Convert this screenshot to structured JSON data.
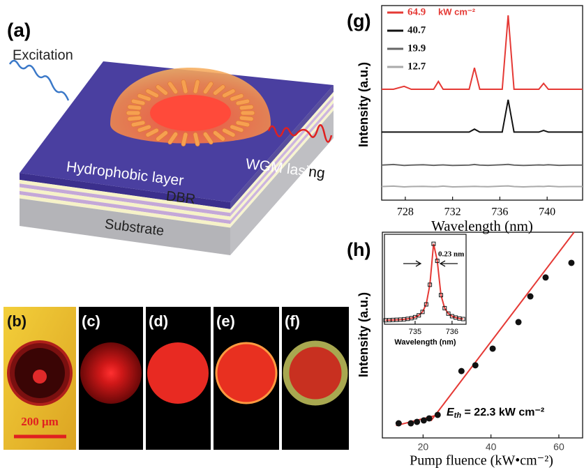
{
  "panel_a": {
    "label": "(a)",
    "excitation": "Excitation",
    "hydrophobic": "Hydrophobic layer",
    "lasing": "WGM lasing",
    "dbr": "DBR",
    "substrate": "Substrate"
  },
  "images": {
    "labels": [
      "(b)",
      "(c)",
      "(d)",
      "(e)",
      "(f)"
    ],
    "scale_bar": "200 μm"
  },
  "chart_data": [
    {
      "type": "line",
      "label": "(g)",
      "xlabel": "Wavelength (nm)",
      "ylabel": "Intensity (a.u.)",
      "xlim": [
        726,
        743
      ],
      "xticks": [
        728,
        732,
        736,
        740
      ],
      "ylim": [
        0,
        100
      ],
      "legend_unit": "kW cm⁻²",
      "x": [
        726,
        727,
        727.9,
        728.5,
        729.5,
        730.4,
        730.8,
        731.2,
        732,
        733.4,
        733.85,
        734.3,
        735,
        736.2,
        736.7,
        737.2,
        738,
        739.3,
        739.7,
        740.1,
        741,
        742,
        743
      ],
      "series": [
        {
          "name": "64.9",
          "color": "#e53935",
          "values": [
            57,
            57,
            58.5,
            57,
            57,
            57,
            61,
            57,
            57,
            57,
            68,
            57,
            57,
            57,
            95,
            57,
            57,
            57,
            60,
            57,
            57,
            57,
            57
          ]
        },
        {
          "name": "40.7",
          "color": "#111111",
          "values": [
            35,
            35,
            35,
            35,
            35,
            35,
            35,
            35,
            35,
            35,
            36.5,
            35,
            35,
            35,
            51.6,
            35,
            35,
            35,
            35.8,
            35,
            35,
            35,
            35
          ]
        },
        {
          "name": "19.9",
          "color": "#666666",
          "values": [
            18,
            18.3,
            17.8,
            18,
            18.2,
            17.9,
            18,
            18.1,
            17.8,
            18,
            18.3,
            18,
            17.9,
            18.2,
            18.4,
            18,
            17.8,
            18.1,
            18,
            18.2,
            17.9,
            18,
            18
          ]
        },
        {
          "name": "12.7",
          "color": "#aaaaaa",
          "values": [
            7,
            7.2,
            6.8,
            7,
            7.1,
            6.9,
            7,
            7.2,
            6.8,
            7,
            7.1,
            7,
            6.9,
            7.2,
            7.3,
            7,
            6.8,
            7.1,
            7,
            7.2,
            6.9,
            7,
            7
          ]
        }
      ]
    },
    {
      "type": "scatter",
      "label": "(h)",
      "xlabel": "Pump fluence (kW•cm⁻²)",
      "ylabel": "Intensity (a.u.)",
      "xlim": [
        8,
        67
      ],
      "xticks": [
        20,
        40,
        60
      ],
      "ylim": [
        0,
        100
      ],
      "color": "#111111",
      "x": [
        12.8,
        16.4,
        18.2,
        20.2,
        21.8,
        24.3,
        31.3,
        35.4,
        40.5,
        48.1,
        51.6,
        56.1,
        63.7
      ],
      "values": [
        7.1,
        7.1,
        7.8,
        8.5,
        9.5,
        11.2,
        32.5,
        35.3,
        43.4,
        56.3,
        68.8,
        78.0,
        85.1
      ],
      "fit_lines": [
        {
          "color": "#e53935",
          "x": [
            12,
            24
          ],
          "values": [
            6,
            11
          ]
        },
        {
          "color": "#e53935",
          "x": [
            22.3,
            64.5
          ],
          "values": [
            8.3,
            100
          ]
        }
      ],
      "annotation_symbol": "E",
      "annotation_subscript": "th",
      "annotation_text": " = 22.3 kW cm⁻²"
    },
    {
      "type": "line",
      "xlabel": "Wavelength (nm)",
      "xticks": [
        735,
        736
      ],
      "xlim": [
        734.17,
        736.38
      ],
      "ylim": [
        0,
        1.05
      ],
      "color": "#e53935",
      "annotation": "0.23 nm",
      "x": [
        734.2,
        734.3,
        734.4,
        734.5,
        734.6,
        734.7,
        734.8,
        734.9,
        735.0,
        735.1,
        735.2,
        735.3,
        735.4,
        735.5,
        735.6,
        735.7,
        735.8,
        735.9,
        736.0,
        736.1,
        736.2,
        736.3
      ],
      "values": [
        0.047,
        0.048,
        0.05,
        0.052,
        0.054,
        0.058,
        0.063,
        0.071,
        0.083,
        0.104,
        0.144,
        0.232,
        0.461,
        0.939,
        0.74,
        0.34,
        0.188,
        0.124,
        0.094,
        0.078,
        0.067,
        0.061
      ]
    }
  ]
}
